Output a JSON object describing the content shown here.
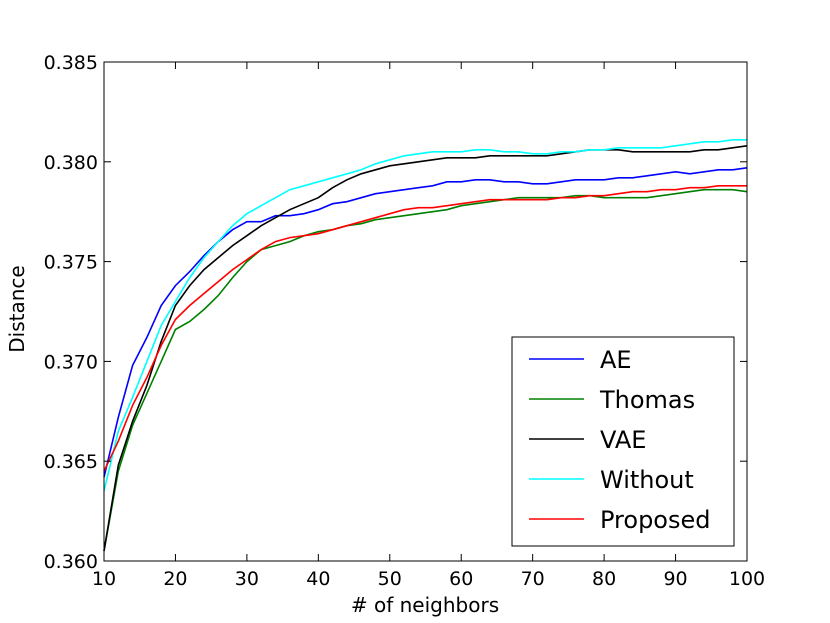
{
  "chart_data": {
    "type": "line",
    "xlabel": "# of neighbors",
    "ylabel": "Distance",
    "xlim": [
      10,
      100
    ],
    "ylim": [
      0.36,
      0.385
    ],
    "xticks": [
      "10",
      "20",
      "30",
      "40",
      "50",
      "60",
      "70",
      "80",
      "90",
      "100"
    ],
    "yticks": [
      "0.360",
      "0.365",
      "0.370",
      "0.375",
      "0.380",
      "0.385"
    ],
    "grid": false,
    "legend_position": "bottom-right",
    "x": [
      10,
      12,
      14,
      16,
      18,
      20,
      22,
      24,
      26,
      28,
      30,
      32,
      34,
      36,
      38,
      40,
      42,
      44,
      46,
      48,
      50,
      52,
      54,
      56,
      58,
      60,
      62,
      64,
      66,
      68,
      70,
      72,
      74,
      76,
      78,
      80,
      82,
      84,
      86,
      88,
      90,
      92,
      94,
      96,
      98,
      100
    ],
    "series": [
      {
        "name": "AE",
        "color": "#0000ff",
        "values": [
          0.3642,
          0.3672,
          0.3698,
          0.3712,
          0.3728,
          0.3738,
          0.3745,
          0.3753,
          0.376,
          0.3766,
          0.377,
          0.377,
          0.3773,
          0.3773,
          0.3774,
          0.3776,
          0.3779,
          0.378,
          0.3782,
          0.3784,
          0.3785,
          0.3786,
          0.3787,
          0.3788,
          0.379,
          0.379,
          0.3791,
          0.3791,
          0.379,
          0.379,
          0.3789,
          0.3789,
          0.379,
          0.3791,
          0.3791,
          0.3791,
          0.3792,
          0.3792,
          0.3793,
          0.3794,
          0.3795,
          0.3794,
          0.3795,
          0.3796,
          0.3796,
          0.3797
        ]
      },
      {
        "name": "Thomas",
        "color": "#008000",
        "values": [
          0.3605,
          0.3645,
          0.3668,
          0.3684,
          0.37,
          0.3716,
          0.372,
          0.3726,
          0.3733,
          0.3742,
          0.375,
          0.3756,
          0.3758,
          0.376,
          0.3763,
          0.3765,
          0.3766,
          0.3768,
          0.3769,
          0.3771,
          0.3772,
          0.3773,
          0.3774,
          0.3775,
          0.3776,
          0.3778,
          0.3779,
          0.378,
          0.3781,
          0.3782,
          0.3782,
          0.3782,
          0.3782,
          0.3783,
          0.3783,
          0.3782,
          0.3782,
          0.3782,
          0.3782,
          0.3783,
          0.3784,
          0.3785,
          0.3786,
          0.3786,
          0.3786,
          0.3785
        ]
      },
      {
        "name": "VAE",
        "color": "#000000",
        "values": [
          0.3605,
          0.3648,
          0.367,
          0.3688,
          0.371,
          0.3728,
          0.3738,
          0.3746,
          0.3752,
          0.3758,
          0.3763,
          0.3768,
          0.3772,
          0.3776,
          0.3779,
          0.3782,
          0.3787,
          0.3791,
          0.3794,
          0.3796,
          0.3798,
          0.3799,
          0.38,
          0.3801,
          0.3802,
          0.3802,
          0.3802,
          0.3803,
          0.3803,
          0.3803,
          0.3803,
          0.3803,
          0.3804,
          0.3805,
          0.3806,
          0.3806,
          0.3806,
          0.3805,
          0.3805,
          0.3805,
          0.3805,
          0.3805,
          0.3806,
          0.3806,
          0.3807,
          0.3808
        ]
      },
      {
        "name": "Without",
        "color": "#00ffff",
        "values": [
          0.3635,
          0.3665,
          0.3682,
          0.37,
          0.3718,
          0.373,
          0.3742,
          0.3752,
          0.376,
          0.3768,
          0.3774,
          0.3778,
          0.3782,
          0.3786,
          0.3788,
          0.379,
          0.3792,
          0.3794,
          0.3796,
          0.3799,
          0.3801,
          0.3803,
          0.3804,
          0.3805,
          0.3805,
          0.3805,
          0.3806,
          0.3806,
          0.3805,
          0.3805,
          0.3804,
          0.3804,
          0.3805,
          0.3805,
          0.3806,
          0.3806,
          0.3807,
          0.3807,
          0.3807,
          0.3807,
          0.3808,
          0.3809,
          0.381,
          0.381,
          0.3811,
          0.3811
        ]
      },
      {
        "name": "Proposed",
        "color": "#ff0000",
        "values": [
          0.3645,
          0.366,
          0.3678,
          0.3692,
          0.3708,
          0.3721,
          0.3728,
          0.3734,
          0.374,
          0.3746,
          0.3751,
          0.3756,
          0.376,
          0.3762,
          0.3763,
          0.3764,
          0.3766,
          0.3768,
          0.377,
          0.3772,
          0.3774,
          0.3776,
          0.3777,
          0.3777,
          0.3778,
          0.3779,
          0.378,
          0.3781,
          0.3781,
          0.3781,
          0.3781,
          0.3781,
          0.3782,
          0.3782,
          0.3783,
          0.3783,
          0.3784,
          0.3785,
          0.3785,
          0.3786,
          0.3786,
          0.3787,
          0.3787,
          0.3788,
          0.3788,
          0.3788
        ]
      }
    ]
  }
}
